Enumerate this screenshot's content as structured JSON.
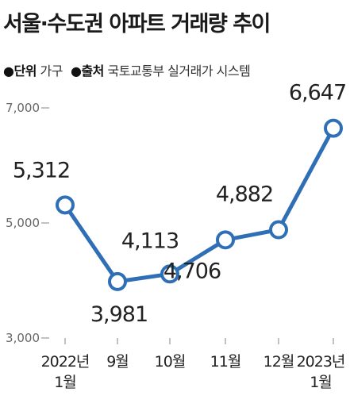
{
  "title": "서울·수도권 아파트 거래량 추이",
  "unit": {
    "bullet": "●",
    "label": "단위",
    "value": "가구"
  },
  "source": {
    "bullet": "●",
    "label": "출처",
    "value": "국토교통부 실거래가 시스템"
  },
  "colors": {
    "line": "#2f6fb6",
    "axis": "#999999",
    "text": "#222222"
  },
  "chart_data": {
    "type": "line",
    "categories": [
      "2022년 1월",
      "9월",
      "10월",
      "11월",
      "12월",
      "2023년 1월"
    ],
    "category_lines": [
      [
        "2022년",
        "1월"
      ],
      [
        "9월"
      ],
      [
        "10월"
      ],
      [
        "11월"
      ],
      [
        "12월"
      ],
      [
        "2023년",
        "1월"
      ]
    ],
    "values": [
      5312,
      3981,
      4113,
      4706,
      4882,
      6647
    ],
    "value_labels": [
      "5,312",
      "3,981",
      "4,113",
      "4,706",
      "4,882",
      "6,647"
    ],
    "label_positions": [
      "above",
      "below",
      "above",
      "below",
      "above",
      "above"
    ],
    "ylim": [
      3000,
      7000
    ],
    "y_ticks": [
      3000,
      5000,
      7000
    ],
    "y_tick_labels": [
      "3,000",
      "5,000",
      "7,000"
    ],
    "grid": false
  }
}
